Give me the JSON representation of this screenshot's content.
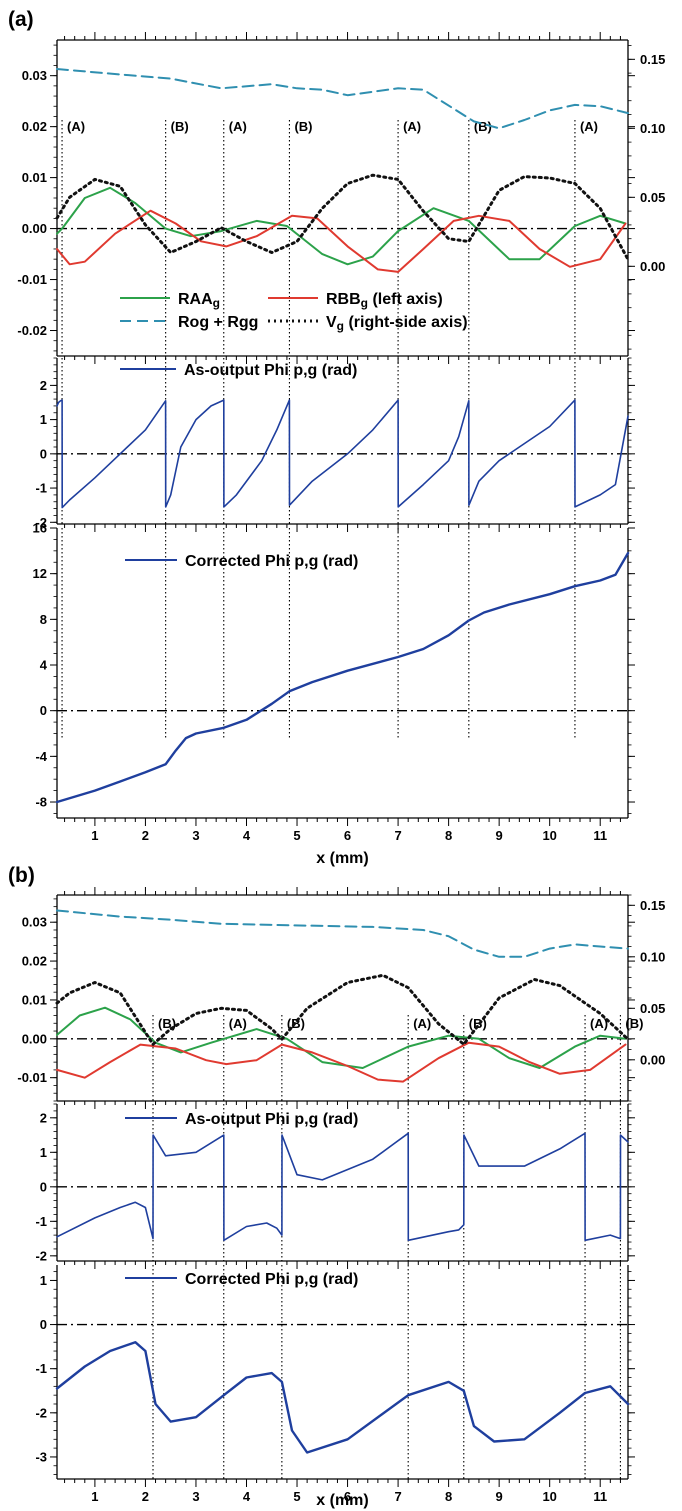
{
  "xticks": [
    "1",
    "2",
    "3",
    "4",
    "5",
    "6",
    "7",
    "8",
    "9",
    "10",
    "11"
  ],
  "chart_data": [
    {
      "id": "a1",
      "title": "(a)",
      "type": "line",
      "xlim": [
        0.25,
        11.55
      ],
      "ylim": [
        -0.025,
        0.037
      ],
      "yticks": [
        -0.02,
        -0.01,
        0.0,
        0.01,
        0.02,
        0.03
      ],
      "y2lim": [
        -0.065,
        0.164
      ],
      "y2ticks": [
        0.0,
        0.05,
        0.1,
        0.15
      ],
      "markers": [
        {
          "x": 0.35,
          "label": "(A)"
        },
        {
          "x": 2.4,
          "label": "(B)"
        },
        {
          "x": 3.55,
          "label": "(A)"
        },
        {
          "x": 4.85,
          "label": "(B)"
        },
        {
          "x": 7.0,
          "label": "(A)"
        },
        {
          "x": 8.4,
          "label": "(B)"
        },
        {
          "x": 10.5,
          "label": "(A)"
        }
      ],
      "legend": [
        {
          "series": "RAA",
          "label": "RAA",
          "sub": "g",
          "color": "#2ca24a",
          "dash": ""
        },
        {
          "series": "RBB",
          "label": "RBB",
          "sub": "g",
          "after": " (left axis)",
          "color": "#e03a30",
          "dash": ""
        },
        {
          "series": "Rog",
          "label": "Rog + Rgg",
          "sub": "",
          "color": "#2f8fb0",
          "dash": "11,6"
        },
        {
          "series": "Vg",
          "label": "V",
          "sub": "g",
          "after": " (right-side axis)",
          "color": "#111111",
          "dash": "2,4"
        }
      ],
      "series": [
        {
          "name": "RAA",
          "color": "#2ca24a",
          "x": [
            0.25,
            0.35,
            0.8,
            1.3,
            1.8,
            2.4,
            2.9,
            3.5,
            4.2,
            4.8,
            5.5,
            6.0,
            6.5,
            7.0,
            7.7,
            8.4,
            9.2,
            9.8,
            10.5,
            11.0,
            11.5
          ],
          "y": [
            -0.001,
            0.0,
            0.006,
            0.008,
            0.005,
            0.0,
            -0.0015,
            -0.0005,
            0.0015,
            0.0005,
            -0.005,
            -0.007,
            -0.0055,
            -0.0005,
            0.004,
            0.0015,
            -0.006,
            -0.006,
            0.0005,
            0.0025,
            0.001
          ]
        },
        {
          "name": "RBB",
          "color": "#e03a30",
          "x": [
            0.25,
            0.5,
            0.8,
            1.4,
            2.1,
            2.6,
            3.1,
            3.6,
            4.2,
            4.9,
            5.4,
            6.0,
            6.6,
            7.0,
            7.5,
            8.1,
            8.6,
            9.2,
            9.8,
            10.4,
            11.0,
            11.5
          ],
          "y": [
            -0.004,
            -0.007,
            -0.0065,
            -0.001,
            0.0035,
            0.001,
            -0.0025,
            -0.0035,
            -0.0015,
            0.0025,
            0.002,
            -0.0035,
            -0.008,
            -0.0085,
            -0.004,
            0.0015,
            0.0025,
            0.0015,
            -0.004,
            -0.0075,
            -0.006,
            0.001
          ]
        },
        {
          "name": "Rog",
          "color": "#2f8fb0",
          "dash": "11,6",
          "axis": "right",
          "x": [
            0.25,
            1.5,
            2.5,
            3.5,
            4.5,
            5.0,
            5.5,
            6.0,
            7.0,
            7.5,
            8.5,
            9.0,
            9.5,
            10.0,
            10.5,
            11.0,
            11.55
          ],
          "y": [
            0.143,
            0.139,
            0.136,
            0.129,
            0.132,
            0.129,
            0.128,
            0.124,
            0.129,
            0.128,
            0.105,
            0.1,
            0.106,
            0.113,
            0.117,
            0.116,
            0.111
          ]
        },
        {
          "name": "Vg",
          "color": "#111111",
          "dash": "2,4",
          "axis": "right",
          "x": [
            0.25,
            0.5,
            1.0,
            1.5,
            2.0,
            2.5,
            3.0,
            3.5,
            4.0,
            4.5,
            5.0,
            5.5,
            6.0,
            6.5,
            7.0,
            7.5,
            8.0,
            8.4,
            9.0,
            9.5,
            10.0,
            10.5,
            11.0,
            11.55
          ],
          "y": [
            0.035,
            0.05,
            0.063,
            0.058,
            0.03,
            0.01,
            0.018,
            0.028,
            0.018,
            0.01,
            0.018,
            0.042,
            0.06,
            0.066,
            0.063,
            0.04,
            0.02,
            0.018,
            0.055,
            0.065,
            0.064,
            0.06,
            0.042,
            0.005
          ]
        }
      ]
    },
    {
      "id": "a2",
      "type": "line",
      "xlim": [
        0.25,
        11.55
      ],
      "ylim": [
        -2.05,
        2.8
      ],
      "yticks": [
        -2,
        -1,
        0,
        1,
        2
      ],
      "labelstep": 1,
      "markers": [
        {
          "x": 0.35
        },
        {
          "x": 2.4
        },
        {
          "x": 3.55
        },
        {
          "x": 4.85
        },
        {
          "x": 7.0
        },
        {
          "x": 8.4
        },
        {
          "x": 10.5
        }
      ],
      "legend": [
        {
          "series": "P1",
          "label": "As-output Phi p,g (rad)",
          "color": "#1f3f9e",
          "dash": ""
        }
      ],
      "series": [
        {
          "name": "P1",
          "color": "#1f3f9e",
          "width": 1.6,
          "x": [
            0.25,
            0.28,
            0.32,
            0.35,
            0.352,
            0.5,
            1.0,
            1.5,
            2.0,
            2.4,
            2.402,
            2.5,
            2.7,
            3.0,
            3.3,
            3.55,
            3.552,
            3.8,
            4.3,
            4.6,
            4.85,
            4.852,
            5.3,
            6.0,
            6.5,
            7.0,
            7.002,
            7.5,
            8.0,
            8.2,
            8.4,
            8.402,
            8.6,
            9.0,
            9.6,
            10.0,
            10.5,
            10.502,
            11.0,
            11.3,
            11.55
          ],
          "y": [
            1.4,
            1.5,
            1.55,
            1.57,
            -1.57,
            -1.35,
            -0.7,
            0.0,
            0.7,
            1.55,
            -1.55,
            -1.2,
            0.2,
            1.0,
            1.4,
            1.57,
            -1.55,
            -1.2,
            -0.2,
            0.7,
            1.57,
            -1.5,
            -0.8,
            0.0,
            0.7,
            1.57,
            -1.55,
            -0.9,
            -0.2,
            0.5,
            1.55,
            -1.5,
            -0.8,
            -0.2,
            0.4,
            0.8,
            1.57,
            -1.55,
            -1.2,
            -0.9,
            1.1
          ]
        }
      ]
    },
    {
      "id": "a3",
      "type": "line",
      "xlim": [
        0.25,
        11.55
      ],
      "ylim": [
        -9.4,
        16
      ],
      "yticks": [
        -8,
        -4,
        0,
        4,
        8,
        12,
        16
      ],
      "labelstep": 4,
      "xlabel": "x (mm)",
      "markers": [
        {
          "x": 0.35
        },
        {
          "x": 2.4
        },
        {
          "x": 3.55
        },
        {
          "x": 4.85
        },
        {
          "x": 7.0
        },
        {
          "x": 8.4
        },
        {
          "x": 10.5
        }
      ],
      "legend": [
        {
          "series": "C1",
          "label": "Corrected Phi p,g (rad)",
          "color": "#1f3f9e",
          "dash": ""
        }
      ],
      "series": [
        {
          "name": "C1",
          "color": "#1f3f9e",
          "width": 2.4,
          "x": [
            0.25,
            1.0,
            1.5,
            2.0,
            2.4,
            2.6,
            2.8,
            3.0,
            3.55,
            4.0,
            4.5,
            4.85,
            5.3,
            6.0,
            7.0,
            7.5,
            8.0,
            8.4,
            8.7,
            9.2,
            10.0,
            10.5,
            11.0,
            11.3,
            11.55
          ],
          "y": [
            -8.0,
            -7.0,
            -6.2,
            -5.4,
            -4.7,
            -3.5,
            -2.4,
            -2.0,
            -1.5,
            -0.8,
            0.6,
            1.7,
            2.5,
            3.5,
            4.7,
            5.4,
            6.6,
            7.9,
            8.6,
            9.3,
            10.2,
            10.9,
            11.4,
            11.9,
            13.8
          ]
        }
      ]
    },
    {
      "id": "b1",
      "title": "(b)",
      "type": "line",
      "xlim": [
        0.25,
        11.55
      ],
      "ylim": [
        -0.016,
        0.037
      ],
      "yticks": [
        -0.01,
        0.0,
        0.01,
        0.02,
        0.03
      ],
      "y2lim": [
        -0.04,
        0.16
      ],
      "y2ticks": [
        0.0,
        0.05,
        0.1,
        0.15
      ],
      "markers": [
        {
          "x": 2.15,
          "label": "(B)"
        },
        {
          "x": 3.55,
          "label": "(A)"
        },
        {
          "x": 4.7,
          "label": "(B)"
        },
        {
          "x": 7.2,
          "label": "(A)"
        },
        {
          "x": 8.3,
          "label": "(B)"
        },
        {
          "x": 10.7,
          "label": "(A)"
        },
        {
          "x": 11.4,
          "label": "(B)"
        }
      ],
      "series": [
        {
          "name": "RAA",
          "color": "#2ca24a",
          "x": [
            0.25,
            0.7,
            1.2,
            1.7,
            2.2,
            2.7,
            3.3,
            4.2,
            4.8,
            5.5,
            6.3,
            7.2,
            8.0,
            8.6,
            9.2,
            9.8,
            10.5,
            11.0,
            11.5
          ],
          "y": [
            0.001,
            0.006,
            0.008,
            0.005,
            -0.001,
            -0.0035,
            -0.001,
            0.0025,
            0.0,
            -0.006,
            -0.0075,
            -0.002,
            0.0008,
            0.0,
            -0.005,
            -0.0075,
            -0.002,
            0.0008,
            0.0
          ]
        },
        {
          "name": "RBB",
          "color": "#e03a30",
          "x": [
            0.25,
            0.8,
            1.3,
            1.9,
            2.6,
            3.2,
            3.6,
            4.2,
            4.7,
            5.3,
            6.0,
            6.6,
            7.1,
            7.8,
            8.4,
            9.0,
            9.6,
            10.2,
            10.8,
            11.5
          ],
          "y": [
            -0.008,
            -0.01,
            -0.006,
            -0.0015,
            -0.0025,
            -0.0055,
            -0.0065,
            -0.0055,
            -0.0015,
            -0.0035,
            -0.007,
            -0.0105,
            -0.011,
            -0.005,
            -0.001,
            -0.002,
            -0.006,
            -0.009,
            -0.008,
            -0.0015
          ]
        },
        {
          "name": "Rog",
          "color": "#2f8fb0",
          "dash": "11,6",
          "axis": "right",
          "x": [
            0.25,
            1.5,
            2.5,
            3.5,
            4.5,
            5.5,
            6.5,
            7.5,
            8.0,
            8.5,
            9.0,
            9.5,
            10.0,
            10.5,
            11.0,
            11.55
          ],
          "y": [
            0.145,
            0.139,
            0.136,
            0.132,
            0.131,
            0.13,
            0.129,
            0.126,
            0.12,
            0.107,
            0.1,
            0.1,
            0.108,
            0.112,
            0.11,
            0.108
          ]
        },
        {
          "name": "Vg",
          "color": "#111111",
          "dash": "2,4",
          "axis": "right",
          "x": [
            0.25,
            0.5,
            1.0,
            1.5,
            2.15,
            2.5,
            3.0,
            3.5,
            4.0,
            4.5,
            4.7,
            5.2,
            6.0,
            6.7,
            7.2,
            7.8,
            8.3,
            9.0,
            9.7,
            10.2,
            10.7,
            11.0,
            11.55
          ],
          "y": [
            0.055,
            0.065,
            0.075,
            0.065,
            0.015,
            0.03,
            0.045,
            0.05,
            0.048,
            0.03,
            0.02,
            0.05,
            0.075,
            0.082,
            0.07,
            0.035,
            0.015,
            0.06,
            0.078,
            0.072,
            0.055,
            0.045,
            0.02
          ]
        }
      ]
    },
    {
      "id": "b2",
      "type": "line",
      "xlim": [
        0.25,
        11.55
      ],
      "ylim": [
        -2.15,
        2.4
      ],
      "yticks": [
        -2,
        -1,
        0,
        1,
        2
      ],
      "labelstep": 1,
      "markers": [
        {
          "x": 2.15
        },
        {
          "x": 3.55
        },
        {
          "x": 4.7
        },
        {
          "x": 7.2
        },
        {
          "x": 8.3
        },
        {
          "x": 10.7
        },
        {
          "x": 11.4
        }
      ],
      "legend": [
        {
          "series": "P2",
          "label": "As-output Phi p,g (rad)",
          "color": "#1f3f9e",
          "dash": ""
        }
      ],
      "series": [
        {
          "name": "P2",
          "color": "#1f3f9e",
          "width": 1.6,
          "x": [
            0.25,
            1.0,
            1.5,
            1.8,
            2.0,
            2.15,
            2.152,
            2.4,
            3.0,
            3.55,
            3.552,
            4.0,
            4.4,
            4.6,
            4.7,
            4.702,
            5.0,
            5.5,
            6.5,
            7.2,
            7.202,
            8.0,
            8.2,
            8.3,
            8.302,
            8.6,
            9.5,
            10.2,
            10.7,
            10.702,
            11.2,
            11.4,
            11.402,
            11.55
          ],
          "y": [
            -1.45,
            -0.9,
            -0.6,
            -0.45,
            -0.6,
            -1.5,
            1.5,
            0.9,
            1.0,
            1.5,
            -1.55,
            -1.15,
            -1.05,
            -1.2,
            -1.4,
            1.5,
            0.35,
            0.2,
            0.8,
            1.55,
            -1.55,
            -1.3,
            -1.25,
            -1.1,
            1.5,
            0.6,
            0.6,
            1.1,
            1.55,
            -1.55,
            -1.4,
            -1.5,
            1.5,
            1.3
          ]
        }
      ]
    },
    {
      "id": "b3",
      "type": "line",
      "xlim": [
        0.25,
        11.55
      ],
      "ylim": [
        -3.5,
        1.35
      ],
      "yticks": [
        -3,
        -2,
        -1,
        0,
        1
      ],
      "labelstep": 1,
      "xlabel": "x (mm)",
      "markers": [
        {
          "x": 2.15
        },
        {
          "x": 3.55
        },
        {
          "x": 4.7
        },
        {
          "x": 7.2
        },
        {
          "x": 8.3
        },
        {
          "x": 10.7
        },
        {
          "x": 11.4
        }
      ],
      "legend": [
        {
          "series": "C2",
          "label": "Corrected Phi p,g (rad)",
          "color": "#1f3f9e",
          "dash": ""
        }
      ],
      "series": [
        {
          "name": "C2",
          "color": "#1f3f9e",
          "width": 2.4,
          "x": [
            0.25,
            0.8,
            1.3,
            1.8,
            2.0,
            2.2,
            2.5,
            3.0,
            3.55,
            4.0,
            4.5,
            4.7,
            4.9,
            5.2,
            6.0,
            7.2,
            8.0,
            8.3,
            8.5,
            8.9,
            9.5,
            10.2,
            10.7,
            11.2,
            11.55
          ],
          "y": [
            -1.45,
            -0.95,
            -0.6,
            -0.4,
            -0.6,
            -1.8,
            -2.2,
            -2.1,
            -1.6,
            -1.2,
            -1.1,
            -1.3,
            -2.4,
            -2.9,
            -2.6,
            -1.6,
            -1.3,
            -1.5,
            -2.3,
            -2.65,
            -2.6,
            -2.0,
            -1.55,
            -1.4,
            -1.8
          ]
        }
      ]
    }
  ]
}
